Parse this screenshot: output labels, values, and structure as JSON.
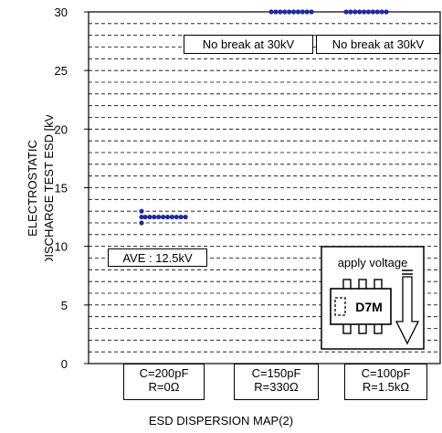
{
  "chart_data": {
    "type": "scatter",
    "title": "",
    "ylabel_lines": [
      "ELECTROSTATIC",
      "DISCHARGE TEST ESD [kV]"
    ],
    "xlabel": "ESD DISPERSION MAP(2)",
    "ylim": [
      0,
      30
    ],
    "yticks": [
      0,
      5,
      10,
      15,
      20,
      25,
      30
    ],
    "grid": "horizontal dashed every 1 kV",
    "categories": [
      {
        "line1": "C=200pF",
        "line2": "R=0Ω"
      },
      {
        "line1": "C=150pF",
        "line2": "R=330Ω"
      },
      {
        "line1": "C=100pF",
        "line2": "R=1.5kΩ"
      }
    ],
    "series": [
      {
        "values": [
          12.5,
          12.5,
          12.5,
          12.5,
          12.5,
          12.5,
          12.5,
          12.5,
          12.5,
          12.5,
          12.0,
          12.5,
          13.0
        ]
      },
      {
        "values": [
          30,
          30,
          30,
          30,
          30,
          30,
          30,
          30,
          30,
          30
        ]
      },
      {
        "values": [
          30,
          30,
          30,
          30,
          30,
          30,
          30,
          30,
          30,
          30
        ]
      }
    ],
    "marker_color": "#1f2a9e",
    "annotations": {
      "ave": "AVE : 12.5kV",
      "no_break_1": "No break at 30kV",
      "no_break_2": "No break at 30kV"
    },
    "inset": {
      "title": "apply voltage",
      "package_label": "D7M"
    }
  }
}
